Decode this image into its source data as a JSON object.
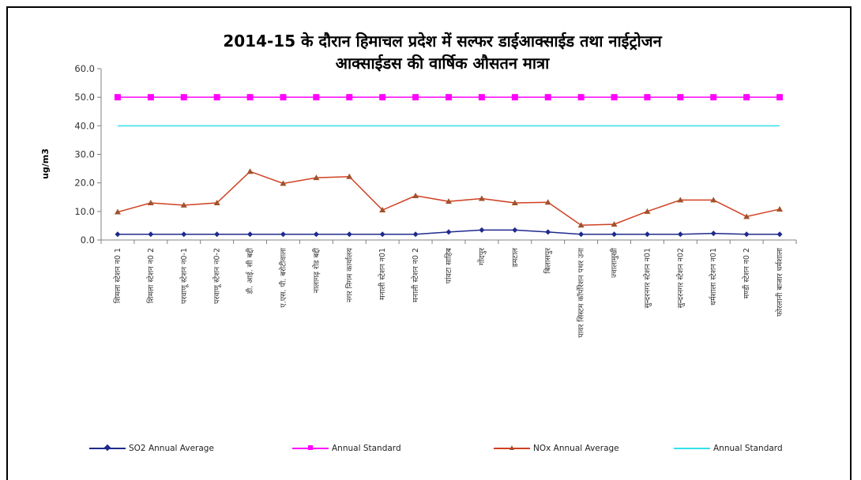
{
  "chart_data": {
    "type": "line",
    "title_line1": "2014-15 के दौरान हिमाचल प्रदेश में सल्फर डाईआक्साईड तथा नाईट्रोजन",
    "title_line2": "आक्साईडस   की वार्षिक औसतन मात्रा",
    "ylabel": "ug/m3",
    "xlabel": "",
    "ylim": [
      0,
      60
    ],
    "yticks": [
      "0.0",
      "10.0",
      "20.0",
      "30.0",
      "40.0",
      "50.0",
      "60.0"
    ],
    "grid": false,
    "legend_position": "bottom",
    "categories": [
      "शिमला स्टेशन न0 1",
      "शिमला स्टेशन न0 2",
      "परवाणू स्टेशन न0-1",
      "परवाणू स्टेशन न0-2",
      "डी. आई. सी बद्दी",
      "ए.एस. पी. बरोटीवाला",
      "नालागढ़ रोड बद्दी",
      "नगर निगम कार्यालय",
      "मनाली स्टेशन न01",
      "मनाली स्टेशन न0 2",
      "पांवटा साहिब",
      "गोंदपुर",
      "डमटाल",
      "बिलासपुर",
      "पावर सिस्टम कॉर्पोरेशन पथर उना",
      "ज्वालामुखी",
      "सुन्दरनगर स्टेशन न01",
      "सुन्दरनगर स्टेशन न02",
      "धर्मशाला स्टेशन न01",
      "मण्डी स्टेशन न0 2",
      "फोरलानी बाजार धर्मशाला"
    ],
    "series": [
      {
        "name": "SO2 Annual Average",
        "color": "#1f2a8c",
        "marker": "diamond",
        "values": [
          2,
          2,
          2,
          2,
          2,
          2,
          2,
          2,
          2,
          2,
          2.8,
          3.5,
          3.5,
          2.8,
          2,
          2,
          2,
          2,
          2.3,
          2,
          2
        ]
      },
      {
        "name": "Annual Standard",
        "color": "#ff00ff",
        "marker": "square",
        "values": [
          50,
          50,
          50,
          50,
          50,
          50,
          50,
          50,
          50,
          50,
          50,
          50,
          50,
          50,
          50,
          50,
          50,
          50,
          50,
          50,
          50
        ]
      },
      {
        "name": "NOx Annual Average",
        "color": "#d04020",
        "marker": "triangle",
        "marker_color": "#a0522d",
        "values": [
          9.8,
          13,
          12.2,
          13,
          24,
          19.8,
          21.8,
          22.2,
          10.5,
          15.5,
          13.5,
          14.5,
          13,
          13.2,
          5.2,
          5.5,
          10,
          14,
          14,
          8.2,
          10.8
        ]
      },
      {
        "name": "Annual Standard",
        "color": "#33e0ea",
        "marker": "none",
        "values": [
          40,
          40,
          40,
          40,
          40,
          40,
          40,
          40,
          40,
          40,
          40,
          40,
          40,
          40,
          40,
          40,
          40,
          40,
          40,
          40,
          40
        ]
      }
    ]
  }
}
